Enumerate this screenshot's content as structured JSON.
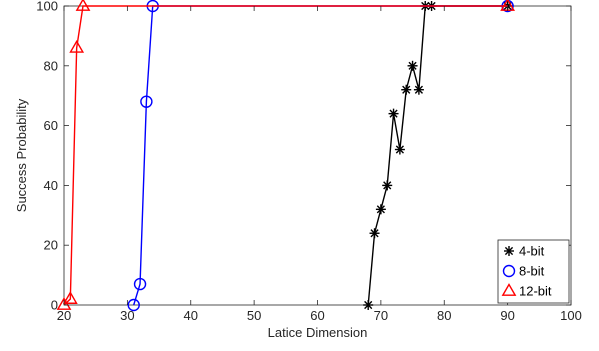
{
  "chart_data": {
    "type": "line",
    "xlabel": "Latice Dimension",
    "ylabel": "Success Probability",
    "xlim": [
      20,
      100
    ],
    "ylim": [
      0,
      100
    ],
    "xticks": [
      "20",
      "30",
      "40",
      "50",
      "60",
      "70",
      "80",
      "90",
      "100"
    ],
    "yticks": [
      "0",
      "20",
      "40",
      "60",
      "80",
      "100"
    ],
    "grid": false,
    "legend_position": "bottom-right",
    "series": [
      {
        "name": "4-bit",
        "color": "#000000",
        "marker": "star",
        "x": [
          68,
          69,
          70,
          71,
          72,
          73,
          74,
          75,
          76,
          77,
          78,
          90
        ],
        "y": [
          0,
          24,
          32,
          40,
          64,
          52,
          72,
          80,
          72,
          100,
          100,
          100
        ]
      },
      {
        "name": "8-bit",
        "color": "#0000ff",
        "marker": "circle",
        "x": [
          31,
          32,
          33,
          34,
          90
        ],
        "y": [
          0,
          7,
          68,
          100,
          100
        ]
      },
      {
        "name": "12-bit",
        "color": "#ff0000",
        "marker": "triangle",
        "x": [
          20,
          21,
          22,
          23,
          90
        ],
        "y": [
          0,
          2,
          86,
          100,
          100
        ]
      }
    ]
  }
}
